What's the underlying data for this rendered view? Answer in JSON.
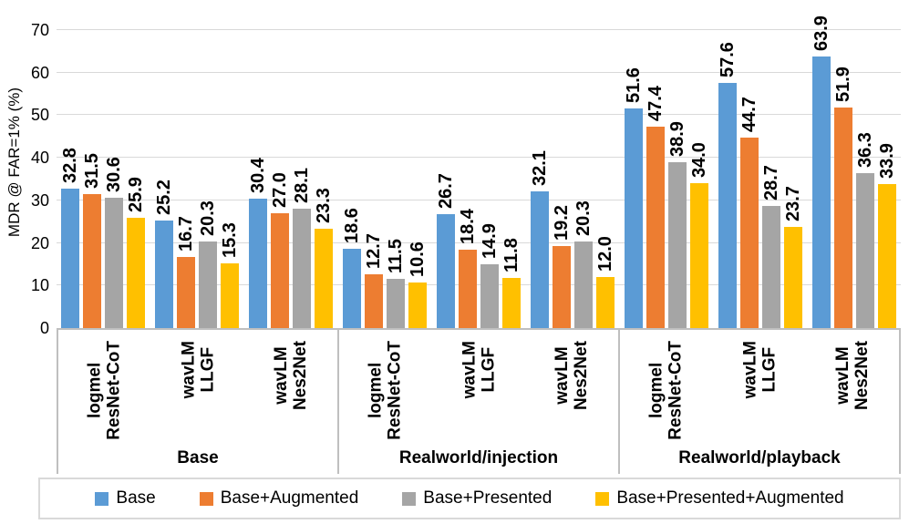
{
  "chart_data": {
    "type": "bar",
    "title": "",
    "ylabel": "MDR @ FAR=1% (%)",
    "xlabel": "",
    "ylim": [
      0,
      70
    ],
    "yticks": [
      0,
      10,
      20,
      30,
      40,
      50,
      60,
      70
    ],
    "grid": true,
    "legend_position": "bottom",
    "colors": {
      "grid": "#D9D9D9",
      "axis": "#BFBFBF",
      "legend_border": "#D9D9D9"
    },
    "groups": [
      {
        "label": "Base",
        "categories": [
          "logmel\nResNet-CoT",
          "wavLM\nLLGF",
          "wavLM\nNes2Net"
        ]
      },
      {
        "label": "Realworld/injection",
        "categories": [
          "logmel\nResNet-CoT",
          "wavLM\nLLGF",
          "wavLM\nNes2Net"
        ]
      },
      {
        "label": "Realworld/playback",
        "categories": [
          "logmel\nResNet-CoT",
          "wavLM\nLLGF",
          "wavLM\nNes2Net"
        ]
      }
    ],
    "series": [
      {
        "name": "Base",
        "color": "#5B9BD5",
        "values": [
          32.8,
          25.2,
          30.4,
          18.6,
          26.7,
          32.1,
          51.6,
          57.6,
          63.9
        ],
        "labels": [
          "32.8",
          "25.2",
          "30.4",
          "18.6",
          "26.7",
          "32.1",
          "51.6",
          "57.6",
          "63.9"
        ]
      },
      {
        "name": "Base+Augmented",
        "color": "#ED7D31",
        "values": [
          31.5,
          16.7,
          27.0,
          12.7,
          18.4,
          19.2,
          47.4,
          44.7,
          51.9
        ],
        "labels": [
          "31.5",
          "16.7",
          "27.0",
          "12.7",
          "18.4",
          "19.2",
          "47.4",
          "44.7",
          "51.9"
        ]
      },
      {
        "name": "Base+Presented",
        "color": "#A5A5A5",
        "values": [
          30.6,
          20.3,
          28.1,
          11.5,
          14.9,
          20.3,
          38.9,
          28.7,
          36.3
        ],
        "labels": [
          "30.6",
          "20.3",
          "28.1",
          "11.5",
          "14.9",
          "20.3",
          "38.9",
          "28.7",
          "36.3"
        ]
      },
      {
        "name": "Base+Presented+Augmented",
        "color": "#FFC000",
        "values": [
          25.9,
          15.3,
          23.3,
          10.6,
          11.8,
          12.0,
          34.0,
          23.7,
          33.9
        ],
        "labels": [
          "25.9",
          "15.3",
          "23.3",
          "10.6",
          "11.8",
          "12.0",
          "34.0",
          "23.7",
          "33.9"
        ]
      }
    ]
  }
}
